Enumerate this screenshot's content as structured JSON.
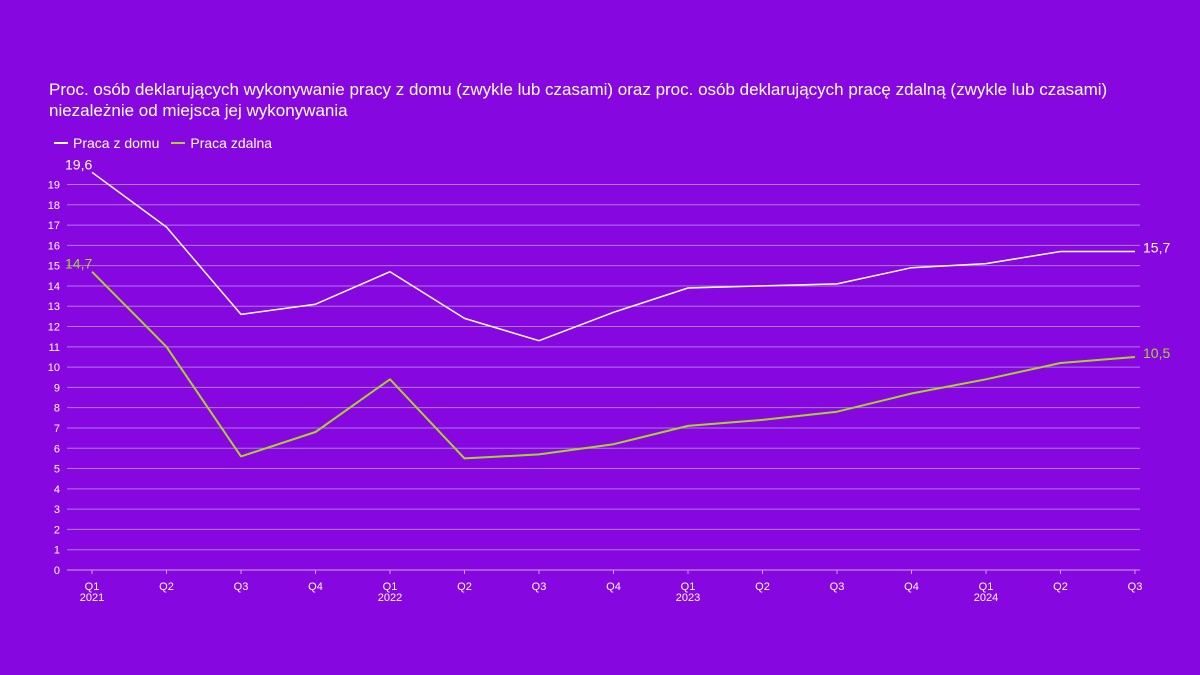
{
  "chart_data": {
    "type": "line",
    "title": "Proc. osób deklarujących wykonywanie pracy z domu (zwykle lub czasami) oraz proc. osób deklarujących pracę zdalną (zwykle lub czasami) niezależnie od miejsca jej wykonywania",
    "categories": [
      "Q1",
      "Q2",
      "Q3",
      "Q4",
      "Q1",
      "Q2",
      "Q3",
      "Q4",
      "Q1",
      "Q2",
      "Q3",
      "Q4",
      "Q1",
      "Q2",
      "Q3"
    ],
    "years": [
      "2021",
      "",
      "",
      "",
      "2022",
      "",
      "",
      "",
      "2023",
      "",
      "",
      "",
      "2024",
      "",
      ""
    ],
    "series": [
      {
        "name": "Praca z domu",
        "color": "#ffffff",
        "values": [
          19.6,
          16.9,
          12.6,
          13.1,
          14.7,
          12.4,
          11.3,
          12.7,
          13.9,
          14.0,
          14.1,
          14.9,
          15.1,
          15.7,
          15.7
        ],
        "first_label": "19,6",
        "last_label": "15,7"
      },
      {
        "name": "Praca zdalna",
        "color": "#a7d22f",
        "values": [
          14.7,
          11.0,
          5.6,
          6.8,
          9.4,
          5.5,
          5.7,
          6.2,
          7.1,
          7.4,
          7.8,
          8.7,
          9.4,
          10.2,
          10.5
        ],
        "first_label": "14,7",
        "last_label": "10,5"
      }
    ],
    "ylim": [
      0,
      19
    ],
    "yticks": [
      "0",
      "1",
      "2",
      "3",
      "4",
      "5",
      "6",
      "7",
      "8",
      "9",
      "10",
      "11",
      "12",
      "13",
      "14",
      "15",
      "16",
      "17",
      "18",
      "19"
    ],
    "legend": "top-left",
    "grid": true,
    "gridColor": "#b07ae8",
    "axisColor": "#c9a3f0"
  }
}
